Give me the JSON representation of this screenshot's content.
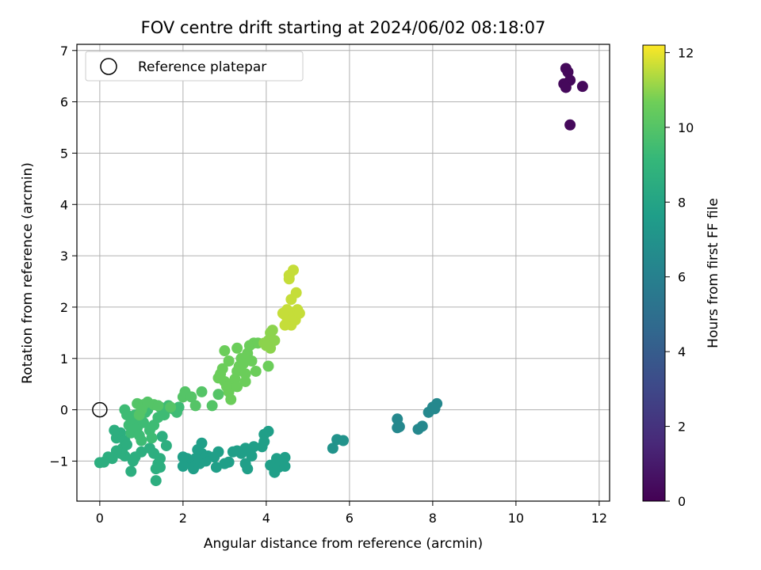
{
  "chart_data": {
    "type": "scatter",
    "title": "FOV centre drift starting at 2024/06/02 08:18:07",
    "xlabel": "Angular distance from reference (arcmin)",
    "ylabel": "Rotation from reference (arcmin)",
    "xlim": [
      -0.55,
      12.25
    ],
    "ylim": [
      -1.78,
      7.12
    ],
    "xticks": [
      0,
      2,
      4,
      6,
      8,
      10,
      12
    ],
    "yticks": [
      -1,
      0,
      1,
      2,
      3,
      4,
      5,
      6,
      7
    ],
    "grid": true,
    "legend": {
      "placement": "top-left",
      "entries": [
        {
          "label": "Reference platepar",
          "marker": "open-circle",
          "x": 0,
          "y": 0
        }
      ]
    },
    "colorbar": {
      "label": "Hours from first FF file",
      "colormap": "viridis",
      "range": [
        0,
        12.2
      ],
      "ticks": [
        0,
        2,
        4,
        6,
        8,
        10,
        12
      ]
    },
    "point_groups": [
      {
        "color_value": 0.3,
        "points": [
          [
            11.2,
            6.65
          ],
          [
            11.25,
            6.58
          ],
          [
            11.15,
            6.35
          ],
          [
            11.3,
            6.42
          ],
          [
            11.2,
            6.28
          ],
          [
            11.6,
            6.3
          ],
          [
            11.3,
            5.55
          ]
        ]
      },
      {
        "color_value": 6.4,
        "points": [
          [
            7.15,
            -0.18
          ],
          [
            7.15,
            -0.35
          ],
          [
            7.2,
            -0.33
          ],
          [
            7.65,
            -0.38
          ],
          [
            7.75,
            -0.32
          ],
          [
            7.9,
            -0.05
          ],
          [
            8.0,
            0.05
          ],
          [
            8.1,
            0.12
          ],
          [
            8.05,
            0.02
          ]
        ]
      },
      {
        "color_value": 7.0,
        "points": [
          [
            5.6,
            -0.75
          ],
          [
            5.7,
            -0.58
          ],
          [
            5.85,
            -0.6
          ]
        ]
      },
      {
        "color_value": 7.7,
        "points": [
          [
            4.05,
            -0.42
          ],
          [
            3.95,
            -0.48
          ],
          [
            3.95,
            -0.62
          ],
          [
            3.9,
            -0.72
          ],
          [
            4.1,
            -1.08
          ],
          [
            4.25,
            -0.95
          ],
          [
            4.35,
            -1.0
          ],
          [
            4.45,
            -0.93
          ],
          [
            4.3,
            -1.12
          ],
          [
            4.45,
            -1.1
          ],
          [
            4.2,
            -1.22
          ],
          [
            3.7,
            -0.72
          ],
          [
            3.65,
            -0.9
          ],
          [
            3.55,
            -1.15
          ],
          [
            3.5,
            -1.05
          ],
          [
            3.5,
            -0.75
          ],
          [
            3.4,
            -0.85
          ],
          [
            3.3,
            -0.8
          ],
          [
            3.2,
            -0.82
          ],
          [
            3.1,
            -1.02
          ],
          [
            3.0,
            -1.05
          ],
          [
            2.85,
            -0.82
          ],
          [
            2.75,
            -0.92
          ],
          [
            2.8,
            -1.12
          ],
          [
            2.6,
            -0.9
          ],
          [
            2.55,
            -1.0
          ],
          [
            2.45,
            -0.85
          ],
          [
            2.45,
            -0.65
          ],
          [
            2.35,
            -0.78
          ],
          [
            2.4,
            -1.05
          ],
          [
            2.3,
            -0.95
          ],
          [
            2.25,
            -1.15
          ],
          [
            2.15,
            -1.05
          ],
          [
            2.1,
            -0.95
          ],
          [
            2.0,
            -0.92
          ],
          [
            2.0,
            -1.1
          ]
        ]
      },
      {
        "color_value": 8.6,
        "points": [
          [
            1.5,
            -0.52
          ],
          [
            1.6,
            -0.7
          ],
          [
            1.45,
            -0.95
          ],
          [
            1.4,
            -1.05
          ],
          [
            1.35,
            -1.15
          ],
          [
            1.45,
            -1.12
          ],
          [
            1.35,
            -1.38
          ],
          [
            1.3,
            -0.85
          ],
          [
            1.2,
            -0.75
          ],
          [
            1.0,
            -0.82
          ],
          [
            0.85,
            -0.92
          ],
          [
            0.8,
            -1.0
          ],
          [
            0.75,
            -1.2
          ],
          [
            0.6,
            -0.9
          ],
          [
            0.5,
            -0.85
          ],
          [
            0.55,
            -0.75
          ],
          [
            0.4,
            -0.8
          ],
          [
            0.3,
            -0.95
          ],
          [
            0.2,
            -0.92
          ],
          [
            0.1,
            -1.02
          ],
          [
            0.0,
            -1.03
          ],
          [
            0.4,
            -0.55
          ],
          [
            0.5,
            -0.45
          ],
          [
            0.35,
            -0.4
          ],
          [
            0.6,
            -0.6
          ],
          [
            0.65,
            -0.68
          ]
        ]
      },
      {
        "color_value": 9.4,
        "points": [
          [
            0.7,
            -0.3
          ],
          [
            0.75,
            -0.45
          ],
          [
            0.8,
            -0.2
          ],
          [
            0.85,
            -0.1
          ],
          [
            0.9,
            -0.35
          ],
          [
            0.95,
            -0.5
          ],
          [
            1.0,
            -0.6
          ],
          [
            1.05,
            -0.25
          ],
          [
            1.1,
            -0.05
          ],
          [
            1.15,
            0.0
          ],
          [
            1.2,
            -0.4
          ],
          [
            1.25,
            -0.55
          ],
          [
            1.3,
            -0.3
          ],
          [
            1.4,
            -0.15
          ],
          [
            1.45,
            0.05
          ],
          [
            1.55,
            -0.1
          ],
          [
            1.65,
            0.08
          ],
          [
            1.75,
            0.02
          ],
          [
            1.85,
            -0.05
          ],
          [
            1.9,
            0.05
          ],
          [
            0.6,
            0.0
          ],
          [
            0.65,
            -0.1
          ]
        ]
      },
      {
        "color_value": 10.0,
        "points": [
          [
            0.9,
            0.12
          ],
          [
            1.05,
            0.1
          ],
          [
            1.15,
            0.15
          ],
          [
            1.3,
            0.1
          ],
          [
            1.4,
            0.08
          ],
          [
            1.0,
            0.0
          ],
          [
            0.95,
            -0.1
          ],
          [
            1.7,
            0.05
          ],
          [
            2.0,
            0.25
          ],
          [
            2.05,
            0.35
          ],
          [
            2.2,
            0.25
          ],
          [
            2.3,
            0.08
          ],
          [
            2.45,
            0.35
          ],
          [
            2.7,
            0.08
          ],
          [
            2.85,
            0.3
          ]
        ]
      },
      {
        "color_value": 10.6,
        "points": [
          [
            2.85,
            0.62
          ],
          [
            2.9,
            0.7
          ],
          [
            2.95,
            0.8
          ],
          [
            3.0,
            0.55
          ],
          [
            3.05,
            0.45
          ],
          [
            3.1,
            0.35
          ],
          [
            3.15,
            0.2
          ],
          [
            3.2,
            0.5
          ],
          [
            3.25,
            0.6
          ],
          [
            3.3,
            0.75
          ],
          [
            3.35,
            0.85
          ],
          [
            3.4,
            1.0
          ],
          [
            3.45,
            0.9
          ],
          [
            3.5,
            0.7
          ],
          [
            3.55,
            1.1
          ],
          [
            3.6,
            1.25
          ],
          [
            3.65,
            0.95
          ],
          [
            3.7,
            1.3
          ],
          [
            3.75,
            0.75
          ],
          [
            3.8,
            1.3
          ],
          [
            3.3,
            1.2
          ],
          [
            3.0,
            1.15
          ],
          [
            3.1,
            0.95
          ],
          [
            3.3,
            0.45
          ],
          [
            3.5,
            0.55
          ],
          [
            4.05,
            0.85
          ]
        ]
      },
      {
        "color_value": 11.0,
        "points": [
          [
            3.95,
            1.3
          ],
          [
            4.05,
            1.35
          ],
          [
            4.1,
            1.5
          ],
          [
            4.15,
            1.55
          ],
          [
            4.2,
            1.35
          ],
          [
            4.1,
            1.2
          ],
          [
            4.0,
            1.25
          ]
        ]
      },
      {
        "color_value": 11.6,
        "points": [
          [
            4.45,
            1.85
          ],
          [
            4.5,
            1.7
          ],
          [
            4.55,
            1.8
          ],
          [
            4.6,
            1.65
          ],
          [
            4.65,
            1.9
          ],
          [
            4.7,
            1.75
          ],
          [
            4.75,
            1.95
          ],
          [
            4.8,
            1.88
          ],
          [
            4.6,
            2.15
          ],
          [
            4.72,
            2.28
          ],
          [
            4.55,
            2.55
          ],
          [
            4.55,
            2.62
          ],
          [
            4.65,
            2.72
          ],
          [
            4.45,
            1.65
          ],
          [
            4.5,
            1.95
          ],
          [
            4.4,
            1.88
          ]
        ]
      }
    ]
  }
}
